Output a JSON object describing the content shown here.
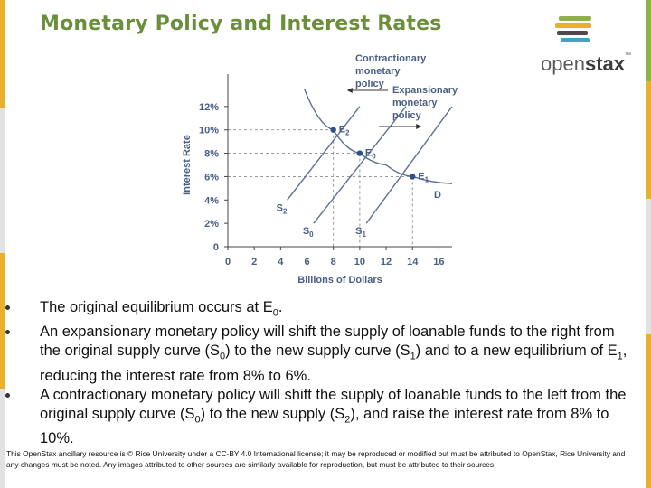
{
  "slide": {
    "title": "Monetary Policy and Interest Rates",
    "logo_text_regular": "open",
    "logo_text_bold": "stax",
    "logo_tm": "™",
    "footer": "This OpenStax ancillary resource is © Rice University under a CC-BY 4.0 International license; it may be reproduced or modified but must be attributed to OpenStax, Rice University and any changes must be noted.  Any images attributed to other sources are similarly available for reproduction, but must be attributed to their sources."
  },
  "bullets": [
    {
      "parts": [
        {
          "t": "The original equilibrium occurs at E"
        },
        {
          "s": "0"
        },
        {
          "t": "."
        }
      ]
    },
    {
      "parts": [
        {
          "t": "An expansionary monetary policy will shift the supply of loanable funds to the right from the original supply curve (S"
        },
        {
          "s": "0"
        },
        {
          "t": ") to the new supply curve (S"
        },
        {
          "s": "1"
        },
        {
          "t": ") and to a new equilibrium of E"
        },
        {
          "s": "1"
        },
        {
          "t": ", reducing the interest rate from 8% to 6%."
        }
      ]
    },
    {
      "parts": [
        {
          "t": "A contractionary monetary policy will shift the supply of loanable funds to the left from the original supply curve (S"
        },
        {
          "s": "0"
        },
        {
          "t": ") to the new supply (S"
        },
        {
          "s": "2"
        },
        {
          "t": "), and raise the interest rate from 8% to 10%."
        }
      ]
    }
  ],
  "chart_data": {
    "type": "line",
    "xlabel": "Billions of Dollars",
    "ylabel": "Interest Rate",
    "xlim": [
      0,
      17
    ],
    "ylim": [
      0,
      14
    ],
    "x_ticks": [
      0,
      2,
      4,
      6,
      8,
      10,
      12,
      14,
      16
    ],
    "x_tick_labels": [
      "0",
      "2",
      "4",
      "6",
      "8",
      "10",
      "12",
      "14",
      "16"
    ],
    "y_ticks": [
      0,
      2,
      4,
      6,
      8,
      10,
      12
    ],
    "y_tick_labels": [
      "0",
      "2%",
      "4%",
      "6%",
      "8%",
      "10%",
      "12%"
    ],
    "grid": false,
    "series": [
      {
        "name": "D",
        "points": [
          [
            5.8,
            13.5
          ],
          [
            8,
            10
          ],
          [
            10,
            8
          ],
          [
            12,
            7
          ],
          [
            14,
            6
          ],
          [
            17,
            5.4
          ]
        ]
      },
      {
        "name": "S0",
        "points": [
          [
            6.5,
            2
          ],
          [
            13.5,
            12
          ]
        ]
      },
      {
        "name": "S1",
        "points": [
          [
            10.5,
            2
          ],
          [
            17,
            12
          ]
        ]
      },
      {
        "name": "S2",
        "points": [
          [
            4.5,
            4
          ],
          [
            10,
            12
          ]
        ]
      }
    ],
    "equilibria": [
      {
        "name": "E2",
        "x": 8,
        "y": 10
      },
      {
        "name": "E0",
        "x": 10,
        "y": 8
      },
      {
        "name": "E1",
        "x": 14,
        "y": 6
      }
    ],
    "annotations": [
      {
        "text": [
          "Contractionary",
          "monetary",
          "policy"
        ],
        "direction": "left"
      },
      {
        "text": [
          "Expansionary",
          "monetary",
          "policy"
        ],
        "direction": "right"
      }
    ],
    "colors": {
      "curve": "#5b6f91",
      "axis": "#444444",
      "guide": "#8a8a8a",
      "point": "#2f4f86",
      "label": "#4a5f85"
    }
  }
}
